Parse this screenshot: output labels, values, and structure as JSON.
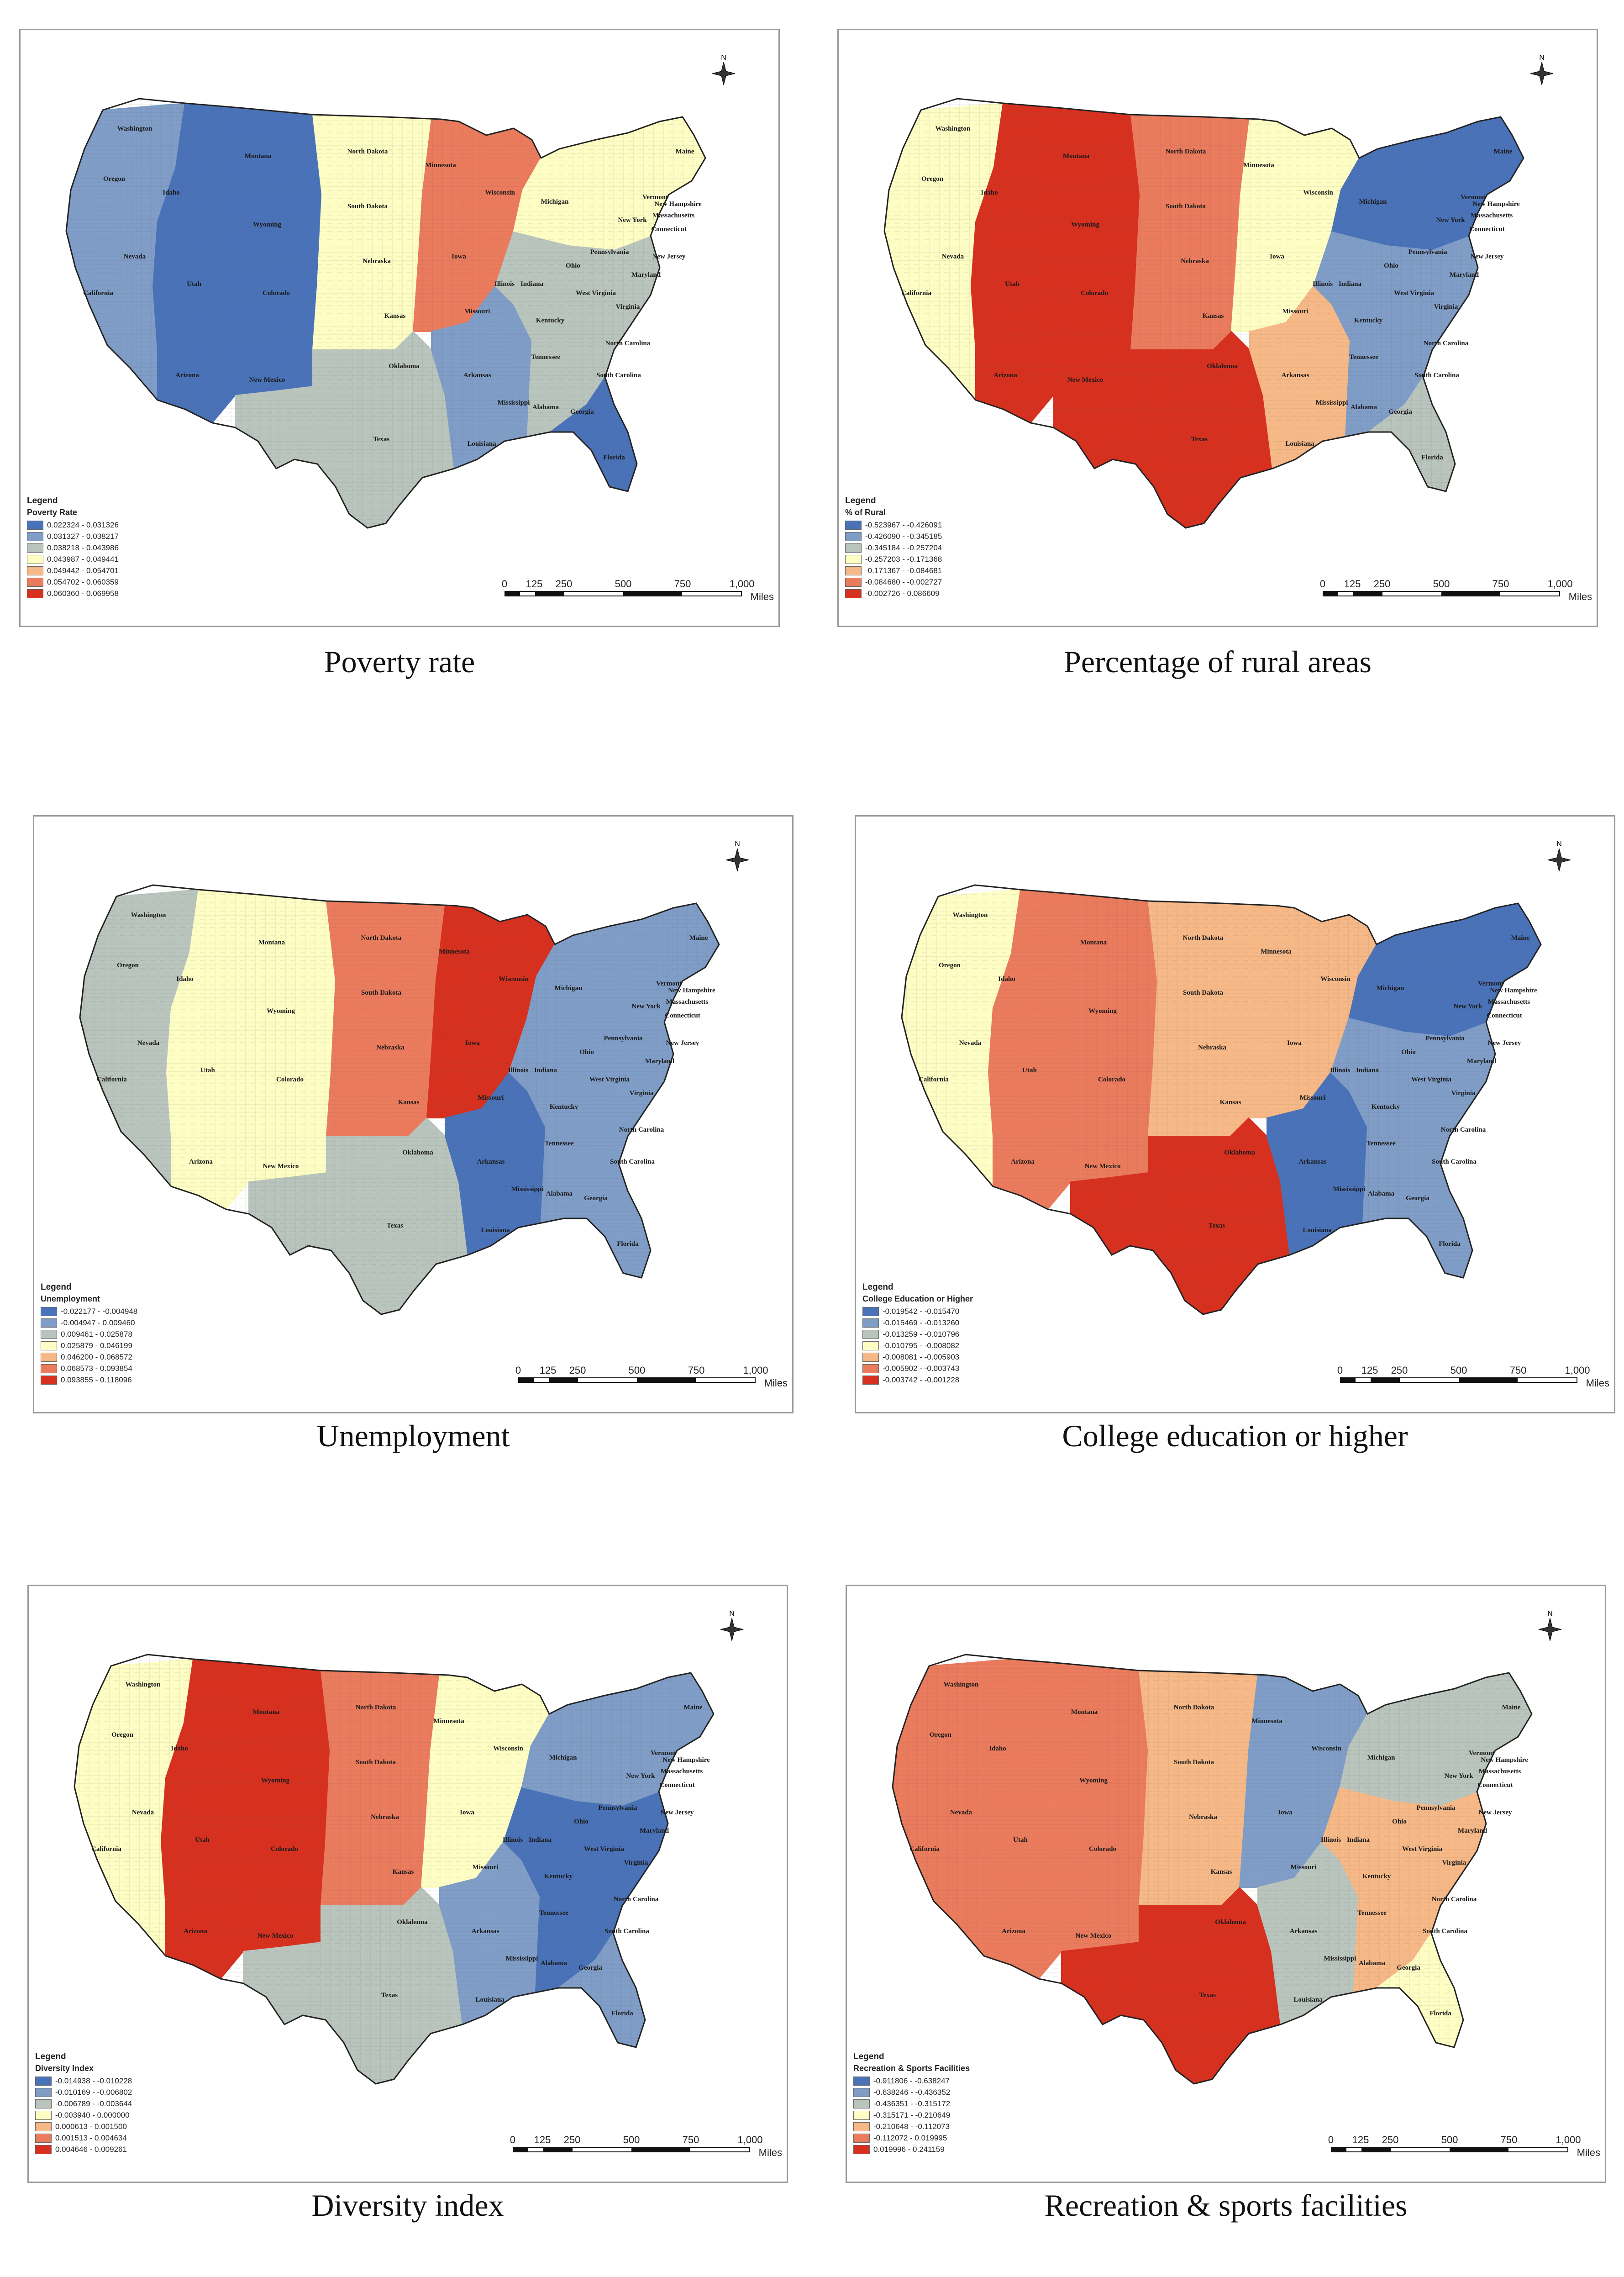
{
  "panels": [
    {
      "caption": "Poverty rate",
      "legend_heading": "Legend",
      "legend_title": "Poverty Rate",
      "legend_classes": [
        "0.022324 - 0.031326",
        "0.031327 - 0.038217",
        "0.038218 - 0.043986",
        "0.043987 - 0.049441",
        "0.049442 - 0.054701",
        "0.054702 - 0.060359",
        "0.060360 - 0.069958"
      ],
      "legend_colors": [
        "#4a72b8",
        "#7f9dc6",
        "#b9c4bd",
        "#fdfdc4",
        "#f6b887",
        "#ea7b5c",
        "#d7301f"
      ],
      "region_classes": {
        "west": 1,
        "mountain": 0,
        "plains": 3,
        "midwest": 5,
        "south": 1,
        "southeast": 2,
        "northeast": 3,
        "texas": 2,
        "florida": 0
      }
    },
    {
      "caption": "Percentage of rural areas",
      "legend_heading": "Legend",
      "legend_title": "% of Rural",
      "legend_classes": [
        "-0.523967 - -0.426091",
        "-0.426090 - -0.345185",
        "-0.345184 - -0.257204",
        "-0.257203 - -0.171368",
        "-0.171367 - -0.084681",
        "-0.084680 - -0.002727",
        "-0.002726 - 0.086609"
      ],
      "legend_colors": [
        "#4a72b8",
        "#7f9dc6",
        "#b9c4bd",
        "#fdfdc4",
        "#f6b887",
        "#ea7b5c",
        "#d7301f"
      ],
      "region_classes": {
        "west": 3,
        "mountain": 6,
        "plains": 5,
        "midwest": 3,
        "south": 4,
        "southeast": 1,
        "northeast": 0,
        "texas": 6,
        "florida": 2
      }
    },
    {
      "caption": "Unemployment",
      "legend_heading": "Legend",
      "legend_title": "Unemployment",
      "legend_classes": [
        "-0.022177 - -0.004948",
        "-0.004947 - 0.009460",
        "0.009461 - 0.025878",
        "0.025879 - 0.046199",
        "0.046200 - 0.068572",
        "0.068573 - 0.093854",
        "0.093855 - 0.118096"
      ],
      "legend_colors": [
        "#4a72b8",
        "#7f9dc6",
        "#b9c4bd",
        "#fdfdc4",
        "#f6b887",
        "#ea7b5c",
        "#d7301f"
      ],
      "region_classes": {
        "west": 2,
        "mountain": 3,
        "plains": 5,
        "midwest": 6,
        "south": 0,
        "southeast": 1,
        "northeast": 1,
        "texas": 2,
        "florida": 1
      }
    },
    {
      "caption": "College education or higher",
      "legend_heading": "Legend",
      "legend_title": "College Education or Higher",
      "legend_classes": [
        "-0.019542 - -0.015470",
        "-0.015469 - -0.013260",
        "-0.013259 - -0.010796",
        "-0.010795 - -0.008082",
        "-0.008081 - -0.005903",
        "-0.005902 - -0.003743",
        "-0.003742 - -0.001228"
      ],
      "legend_colors": [
        "#4a72b8",
        "#7f9dc6",
        "#b9c4bd",
        "#fdfdc4",
        "#f6b887",
        "#ea7b5c",
        "#d7301f"
      ],
      "region_classes": {
        "west": 3,
        "mountain": 5,
        "plains": 4,
        "midwest": 4,
        "south": 0,
        "southeast": 1,
        "northeast": 0,
        "texas": 6,
        "florida": 1
      }
    },
    {
      "caption": "Diversity index",
      "legend_heading": "Legend",
      "legend_title": "Diversity Index",
      "legend_classes": [
        "-0.014938 - -0.010228",
        "-0.010169 - -0.006802",
        "-0.006789 - -0.003644",
        "-0.003940 - 0.000000",
        "0.000613 - 0.001500",
        "0.001513 - 0.004634",
        "0.004646 - 0.009261"
      ],
      "legend_colors": [
        "#4a72b8",
        "#7f9dc6",
        "#b9c4bd",
        "#fdfdc4",
        "#f6b887",
        "#ea7b5c",
        "#d7301f"
      ],
      "region_classes": {
        "west": 3,
        "mountain": 6,
        "plains": 5,
        "midwest": 3,
        "south": 1,
        "southeast": 0,
        "northeast": 1,
        "texas": 2,
        "florida": 1
      }
    },
    {
      "caption": "Recreation & sports facilities",
      "legend_heading": "Legend",
      "legend_title": "Recreation & Sports Facilities",
      "legend_classes": [
        "-0.911806 - -0.638247",
        "-0.638246 - -0.436352",
        "-0.436351 - -0.315172",
        "-0.315171 - -0.210649",
        "-0.210648 - -0.112073",
        "-0.112072 - 0.019995",
        "0.019996 - 0.241159"
      ],
      "legend_colors": [
        "#4a72b8",
        "#7f9dc6",
        "#b9c4bd",
        "#fdfdc4",
        "#f6b887",
        "#ea7b5c",
        "#d7301f"
      ],
      "region_classes": {
        "west": 5,
        "mountain": 5,
        "plains": 4,
        "midwest": 1,
        "south": 2,
        "southeast": 4,
        "northeast": 2,
        "texas": 6,
        "florida": 3
      }
    }
  ],
  "scale_labels": [
    "0",
    "125",
    "250",
    "500",
    "750",
    "1,000"
  ],
  "scale_unit": "Miles",
  "north_label": "N",
  "state_labels": [
    "Washington",
    "Oregon",
    "California",
    "Idaho",
    "Nevada",
    "Utah",
    "Arizona",
    "Montana",
    "Wyoming",
    "Colorado",
    "New Mexico",
    "North Dakota",
    "South Dakota",
    "Nebraska",
    "Kansas",
    "Oklahoma",
    "Texas",
    "Minnesota",
    "Iowa",
    "Missouri",
    "Arkansas",
    "Louisiana",
    "Wisconsin",
    "Illinois",
    "Michigan",
    "Indiana",
    "Ohio",
    "Kentucky",
    "Tennessee",
    "Mississippi",
    "Alabama",
    "Georgia",
    "Florida",
    "South Carolina",
    "North Carolina",
    "Virginia",
    "West Virginia",
    "Pennsylvania",
    "New York",
    "Maryland",
    "New Jersey",
    "Connecticut",
    "Massachusetts",
    "Vermont",
    "New Hampshire",
    "Maine"
  ]
}
